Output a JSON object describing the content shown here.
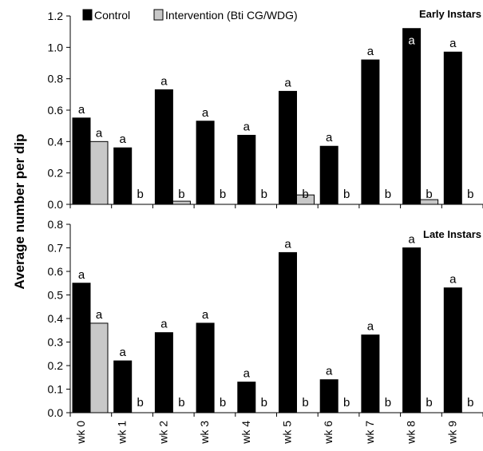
{
  "chart_data": {
    "type": "bar",
    "ylabel": "Average number per dip",
    "legend": {
      "position": "top-left",
      "entries": [
        "Control",
        "Intervention (Bti CG/WDG)"
      ]
    },
    "categories": [
      "wk 0",
      "wk 1",
      "wk 2",
      "wk 3",
      "wk 4",
      "wk 5",
      "wk 6",
      "wk 7",
      "wk 8",
      "wk 9"
    ],
    "colors": {
      "control": "#000000",
      "intervention": "#c8c8c8"
    },
    "panels": [
      {
        "title": "Early Instars",
        "ylim": [
          0,
          1.2
        ],
        "yticks": [
          "0.0",
          "0.2",
          "0.4",
          "0.6",
          "0.8",
          "1.0",
          "1.2"
        ],
        "series": [
          {
            "name": "Control",
            "values": [
              0.55,
              0.36,
              0.73,
              0.53,
              0.44,
              0.72,
              0.37,
              0.92,
              1.12,
              0.97
            ]
          },
          {
            "name": "Intervention (Bti CG/WDG)",
            "values": [
              0.4,
              0.0,
              0.02,
              0.0,
              0.0,
              0.06,
              0.0,
              0.0,
              0.03,
              0.0
            ]
          }
        ],
        "control_labels": [
          "a",
          "a",
          "a",
          "a",
          "a",
          "a",
          "a",
          "a",
          "a",
          "a"
        ],
        "intervention_labels": [
          "a",
          "b",
          "b",
          "b",
          "b",
          "b",
          "b",
          "b",
          "b",
          "b"
        ]
      },
      {
        "title": "Late Instars",
        "ylim": [
          0,
          0.8
        ],
        "yticks": [
          "0.0",
          "0.1",
          "0.2",
          "0.3",
          "0.4",
          "0.5",
          "0.6",
          "0.7",
          "0.8"
        ],
        "series": [
          {
            "name": "Control",
            "values": [
              0.55,
              0.22,
              0.34,
              0.38,
              0.13,
              0.68,
              0.14,
              0.33,
              0.7,
              0.53
            ]
          },
          {
            "name": "Intervention (Bti CG/WDG)",
            "values": [
              0.38,
              0.0,
              0.0,
              0.0,
              0.0,
              0.0,
              0.0,
              0.0,
              0.0,
              0.0
            ]
          }
        ],
        "control_labels": [
          "a",
          "a",
          "a",
          "a",
          "a",
          "a",
          "a",
          "a",
          "a",
          "a"
        ],
        "intervention_labels": [
          "a",
          "b",
          "b",
          "b",
          "b",
          "b",
          "b",
          "b",
          "b",
          "b"
        ]
      }
    ]
  }
}
